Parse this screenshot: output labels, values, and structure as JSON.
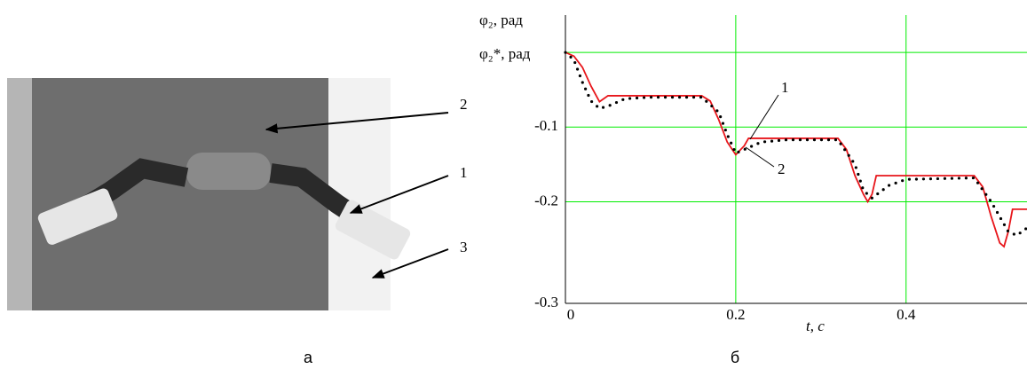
{
  "photo": {
    "labels": [
      "2",
      "1",
      "3"
    ],
    "caption": "а"
  },
  "chart_data": {
    "type": "line",
    "y_labels": [
      "φ₂, рад",
      "φ₂*, рад"
    ],
    "x_label": "t, с",
    "caption": "б",
    "xlim": [
      0,
      0.542
    ],
    "xticks": [
      0,
      0.2,
      0.4
    ],
    "ylim": [
      -0.336,
      0.05
    ],
    "yticks": [
      {
        "value": -0.336,
        "label": "-0.3"
      },
      -0.2,
      -0.1
    ],
    "ygrid": [
      -0.2,
      -0.1,
      0
    ],
    "xgrid": [
      0.2,
      0.4
    ],
    "grid_color": "#00ee00",
    "annotations": [
      "1",
      "2"
    ],
    "series": [
      {
        "color": "#e8161b",
        "style": "solid",
        "x": [
          0,
          0.01,
          0.02,
          0.03,
          0.04,
          0.05,
          0.16,
          0.17,
          0.18,
          0.19,
          0.2,
          0.21,
          0.215,
          0.32,
          0.33,
          0.34,
          0.35,
          0.355,
          0.36,
          0.365,
          0.48,
          0.49,
          0.5,
          0.51,
          0.515,
          0.52,
          0.525,
          0.542
        ],
        "values": [
          0,
          -0.005,
          -0.02,
          -0.045,
          -0.066,
          -0.058,
          -0.058,
          -0.065,
          -0.09,
          -0.12,
          -0.137,
          -0.125,
          -0.115,
          -0.115,
          -0.13,
          -0.165,
          -0.19,
          -0.2,
          -0.19,
          -0.165,
          -0.165,
          -0.18,
          -0.22,
          -0.255,
          -0.26,
          -0.24,
          -0.21,
          -0.21
        ]
      },
      {
        "color": "#000000",
        "style": "dotted",
        "x": [
          0,
          0.01,
          0.02,
          0.03,
          0.04,
          0.05,
          0.07,
          0.1,
          0.16,
          0.18,
          0.19,
          0.2,
          0.21,
          0.23,
          0.26,
          0.32,
          0.34,
          0.35,
          0.36,
          0.38,
          0.4,
          0.48,
          0.5,
          0.52,
          0.53,
          0.542
        ],
        "values": [
          0,
          -0.01,
          -0.04,
          -0.065,
          -0.075,
          -0.072,
          -0.062,
          -0.06,
          -0.06,
          -0.08,
          -0.11,
          -0.135,
          -0.13,
          -0.12,
          -0.117,
          -0.117,
          -0.15,
          -0.185,
          -0.195,
          -0.178,
          -0.17,
          -0.168,
          -0.2,
          -0.24,
          -0.245,
          -0.235
        ]
      }
    ]
  }
}
